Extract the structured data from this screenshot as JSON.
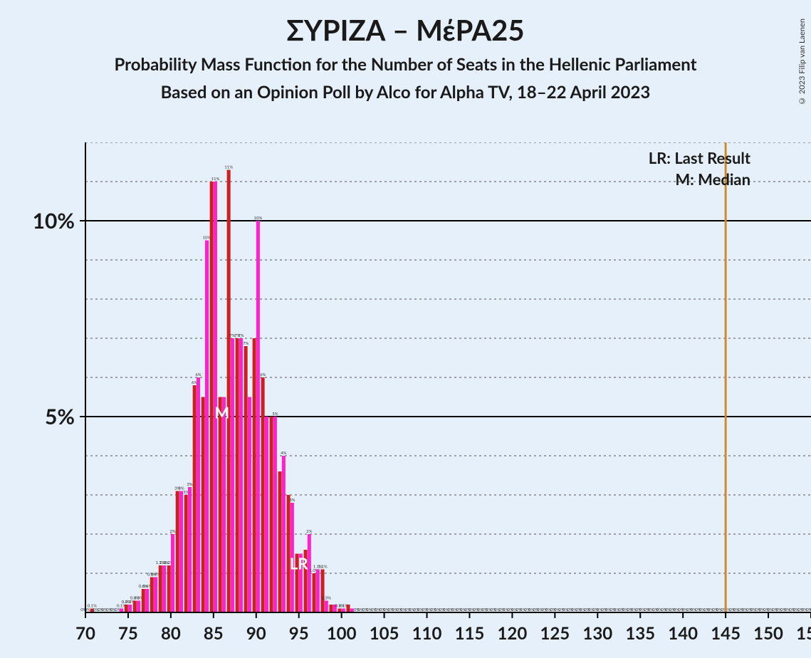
{
  "titles": {
    "main": "ΣΥΡΙΖΑ – ΜέΡΑ25",
    "sub1": "Probability Mass Function for the Number of Seats in the Hellenic Parliament",
    "sub2": "Based on an Opinion Poll by Alco for Alpha TV, 18–22 April 2023"
  },
  "copyright": "© 2023 Filip van Laenen",
  "legend": {
    "lr": "LR: Last Result",
    "m": "M: Median"
  },
  "markers": {
    "median_seat": 86,
    "median_label": "M",
    "lr_seat": 95,
    "lr_label": "LR",
    "lr_vertical_line_seat": 145
  },
  "chart": {
    "type": "bar",
    "background_color": "#e6f0fa",
    "axis_color": "#000000",
    "major_grid_color": "#000000",
    "minor_grid_color": "#555555",
    "lr_line_color": "#d08a2a",
    "x_min": 70,
    "x_max": 155,
    "x_tick_step": 5,
    "y_min": 0,
    "y_max": 12,
    "y_major_ticks": [
      5,
      10
    ],
    "y_minor_step": 1,
    "y_tick_labels": {
      "5": "5%",
      "10": "10%"
    },
    "x_label_fontsize": 24,
    "y_label_fontsize": 30,
    "series": [
      {
        "name": "ΣΥΡΙΖΑ",
        "color": "#cc1f1f",
        "offset": -0.22
      },
      {
        "name": "ΜέΡΑ25",
        "color": "#ff22cc",
        "offset": 0.22
      }
    ],
    "bar_width": 0.42,
    "data": [
      {
        "seat": 70,
        "a": 0,
        "b": 0,
        "la": "0%",
        "lb": "0%"
      },
      {
        "seat": 71,
        "a": 0.1,
        "b": 0,
        "la": "0.1%",
        "lb": "0%"
      },
      {
        "seat": 72,
        "a": 0,
        "b": 0,
        "la": "0%",
        "lb": "0%"
      },
      {
        "seat": 73,
        "a": 0,
        "b": 0,
        "la": "0%",
        "lb": "0%"
      },
      {
        "seat": 74,
        "a": 0,
        "b": 0.1,
        "la": "0%",
        "lb": "0.1%"
      },
      {
        "seat": 75,
        "a": 0.2,
        "b": 0.2,
        "la": "0.2%",
        "lb": "0.2%"
      },
      {
        "seat": 76,
        "a": 0.3,
        "b": 0.3,
        "la": "0.3%",
        "lb": "0.3%"
      },
      {
        "seat": 77,
        "a": 0.6,
        "b": 0.6,
        "la": "0.6%",
        "lb": "0.6%"
      },
      {
        "seat": 78,
        "a": 0.9,
        "b": 0.9,
        "la": "0.9%",
        "lb": "0.9%"
      },
      {
        "seat": 79,
        "a": 1.2,
        "b": 1.2,
        "la": "1.2%",
        "lb": "1.2%"
      },
      {
        "seat": 80,
        "a": 1.2,
        "b": 2.0,
        "la": "1.2%",
        "lb": "2%"
      },
      {
        "seat": 81,
        "a": 3.1,
        "b": 3.1,
        "la": "3%",
        "lb": "3%"
      },
      {
        "seat": 82,
        "a": 3.0,
        "b": 3.2,
        "la": "3%",
        "lb": "3%"
      },
      {
        "seat": 83,
        "a": 5.8,
        "b": 6.0,
        "la": "6%",
        "lb": "6%"
      },
      {
        "seat": 84,
        "a": 5.5,
        "b": 9.5,
        "la": "",
        "lb": "10%"
      },
      {
        "seat": 85,
        "a": 11.0,
        "b": 11.0,
        "la": "",
        "lb": "11%"
      },
      {
        "seat": 86,
        "a": 5.5,
        "b": 5.5,
        "la": "",
        "lb": ""
      },
      {
        "seat": 87,
        "a": 11.3,
        "b": 7.0,
        "la": "11%",
        "lb": "7%"
      },
      {
        "seat": 88,
        "a": 7.0,
        "b": 7.0,
        "la": "7%",
        "lb": "7%"
      },
      {
        "seat": 89,
        "a": 6.8,
        "b": 5.5,
        "la": "7%",
        "lb": ""
      },
      {
        "seat": 90,
        "a": 7.0,
        "b": 10.0,
        "la": "",
        "lb": "10%"
      },
      {
        "seat": 91,
        "a": 6.0,
        "b": 5.0,
        "la": "6%",
        "lb": ""
      },
      {
        "seat": 92,
        "a": 5.0,
        "b": 5.0,
        "la": "",
        "lb": "5%"
      },
      {
        "seat": 93,
        "a": 3.6,
        "b": 4.0,
        "la": "",
        "lb": "4%"
      },
      {
        "seat": 94,
        "a": 3.0,
        "b": 2.8,
        "la": "",
        "lb": "3%"
      },
      {
        "seat": 95,
        "a": 1.5,
        "b": 1.5,
        "la": "",
        "lb": ""
      },
      {
        "seat": 96,
        "a": 1.6,
        "b": 2.0,
        "la": "",
        "lb": "2%"
      },
      {
        "seat": 97,
        "a": 1.0,
        "b": 1.1,
        "la": "1.0%",
        "lb": "1.1%"
      },
      {
        "seat": 98,
        "a": 1.1,
        "b": 0.3,
        "la": "1.1%",
        "lb": "0.3%"
      },
      {
        "seat": 99,
        "a": 0.2,
        "b": 0.2,
        "la": "",
        "lb": ""
      },
      {
        "seat": 100,
        "a": 0.1,
        "b": 0.1,
        "la": "0.1%",
        "lb": "0.1%"
      },
      {
        "seat": 101,
        "a": 0.2,
        "b": 0.1,
        "la": "",
        "lb": ""
      },
      {
        "seat": 102,
        "a": 0,
        "b": 0,
        "la": "0%",
        "lb": "0%"
      },
      {
        "seat": 103,
        "a": 0,
        "b": 0,
        "la": "0%",
        "lb": "0%"
      },
      {
        "seat": 104,
        "a": 0,
        "b": 0,
        "la": "0%",
        "lb": "0%"
      },
      {
        "seat": 105,
        "a": 0,
        "b": 0,
        "la": "0%",
        "lb": "0%"
      },
      {
        "seat": 106,
        "a": 0,
        "b": 0,
        "la": "0%",
        "lb": "0%"
      },
      {
        "seat": 107,
        "a": 0,
        "b": 0,
        "la": "0%",
        "lb": "0%"
      },
      {
        "seat": 108,
        "a": 0,
        "b": 0,
        "la": "0%",
        "lb": "0%"
      },
      {
        "seat": 109,
        "a": 0,
        "b": 0,
        "la": "0%",
        "lb": "0%"
      },
      {
        "seat": 110,
        "a": 0,
        "b": 0,
        "la": "0%",
        "lb": "0%"
      },
      {
        "seat": 111,
        "a": 0,
        "b": 0,
        "la": "0%",
        "lb": "0%"
      },
      {
        "seat": 112,
        "a": 0,
        "b": 0,
        "la": "0%",
        "lb": "0%"
      },
      {
        "seat": 113,
        "a": 0,
        "b": 0,
        "la": "0%",
        "lb": "0%"
      },
      {
        "seat": 114,
        "a": 0,
        "b": 0,
        "la": "0%",
        "lb": "0%"
      },
      {
        "seat": 115,
        "a": 0,
        "b": 0,
        "la": "0%",
        "lb": "0%"
      },
      {
        "seat": 116,
        "a": 0,
        "b": 0,
        "la": "0%",
        "lb": "0%"
      },
      {
        "seat": 117,
        "a": 0,
        "b": 0,
        "la": "0%",
        "lb": "0%"
      },
      {
        "seat": 118,
        "a": 0,
        "b": 0,
        "la": "0%",
        "lb": "0%"
      },
      {
        "seat": 119,
        "a": 0,
        "b": 0,
        "la": "0%",
        "lb": "0%"
      },
      {
        "seat": 120,
        "a": 0,
        "b": 0,
        "la": "0%",
        "lb": "0%"
      },
      {
        "seat": 121,
        "a": 0,
        "b": 0,
        "la": "0%",
        "lb": "0%"
      },
      {
        "seat": 122,
        "a": 0,
        "b": 0,
        "la": "0%",
        "lb": "0%"
      },
      {
        "seat": 123,
        "a": 0,
        "b": 0,
        "la": "0%",
        "lb": "0%"
      },
      {
        "seat": 124,
        "a": 0,
        "b": 0,
        "la": "0%",
        "lb": "0%"
      },
      {
        "seat": 125,
        "a": 0,
        "b": 0,
        "la": "0%",
        "lb": "0%"
      },
      {
        "seat": 126,
        "a": 0,
        "b": 0,
        "la": "0%",
        "lb": "0%"
      },
      {
        "seat": 127,
        "a": 0,
        "b": 0,
        "la": "0%",
        "lb": "0%"
      },
      {
        "seat": 128,
        "a": 0,
        "b": 0,
        "la": "0%",
        "lb": "0%"
      },
      {
        "seat": 129,
        "a": 0,
        "b": 0,
        "la": "0%",
        "lb": "0%"
      },
      {
        "seat": 130,
        "a": 0,
        "b": 0,
        "la": "0%",
        "lb": "0%"
      },
      {
        "seat": 131,
        "a": 0,
        "b": 0,
        "la": "0%",
        "lb": "0%"
      },
      {
        "seat": 132,
        "a": 0,
        "b": 0,
        "la": "0%",
        "lb": "0%"
      },
      {
        "seat": 133,
        "a": 0,
        "b": 0,
        "la": "0%",
        "lb": "0%"
      },
      {
        "seat": 134,
        "a": 0,
        "b": 0,
        "la": "0%",
        "lb": "0%"
      },
      {
        "seat": 135,
        "a": 0,
        "b": 0,
        "la": "0%",
        "lb": "0%"
      },
      {
        "seat": 136,
        "a": 0,
        "b": 0,
        "la": "0%",
        "lb": "0%"
      },
      {
        "seat": 137,
        "a": 0,
        "b": 0,
        "la": "0%",
        "lb": "0%"
      },
      {
        "seat": 138,
        "a": 0,
        "b": 0,
        "la": "0%",
        "lb": "0%"
      },
      {
        "seat": 139,
        "a": 0,
        "b": 0,
        "la": "0%",
        "lb": "0%"
      },
      {
        "seat": 140,
        "a": 0,
        "b": 0,
        "la": "0%",
        "lb": "0%"
      },
      {
        "seat": 141,
        "a": 0,
        "b": 0,
        "la": "0%",
        "lb": "0%"
      },
      {
        "seat": 142,
        "a": 0,
        "b": 0,
        "la": "0%",
        "lb": "0%"
      },
      {
        "seat": 143,
        "a": 0,
        "b": 0,
        "la": "0%",
        "lb": "0%"
      },
      {
        "seat": 144,
        "a": 0,
        "b": 0,
        "la": "0%",
        "lb": "0%"
      },
      {
        "seat": 145,
        "a": 0,
        "b": 0,
        "la": "0%",
        "lb": "0%"
      },
      {
        "seat": 146,
        "a": 0,
        "b": 0,
        "la": "0%",
        "lb": "0%"
      },
      {
        "seat": 147,
        "a": 0,
        "b": 0,
        "la": "0%",
        "lb": "0%"
      },
      {
        "seat": 148,
        "a": 0,
        "b": 0,
        "la": "0%",
        "lb": "0%"
      },
      {
        "seat": 149,
        "a": 0,
        "b": 0,
        "la": "0%",
        "lb": "0%"
      },
      {
        "seat": 150,
        "a": 0,
        "b": 0,
        "la": "0%",
        "lb": "0%"
      },
      {
        "seat": 151,
        "a": 0,
        "b": 0,
        "la": "0%",
        "lb": "0%"
      },
      {
        "seat": 152,
        "a": 0,
        "b": 0,
        "la": "0%",
        "lb": "0%"
      },
      {
        "seat": 153,
        "a": 0,
        "b": 0,
        "la": "0%",
        "lb": "0%"
      },
      {
        "seat": 154,
        "a": 0,
        "b": 0,
        "la": "0%",
        "lb": "0%"
      },
      {
        "seat": 155,
        "a": 0,
        "b": 0,
        "la": "0%",
        "lb": "0%"
      }
    ]
  }
}
